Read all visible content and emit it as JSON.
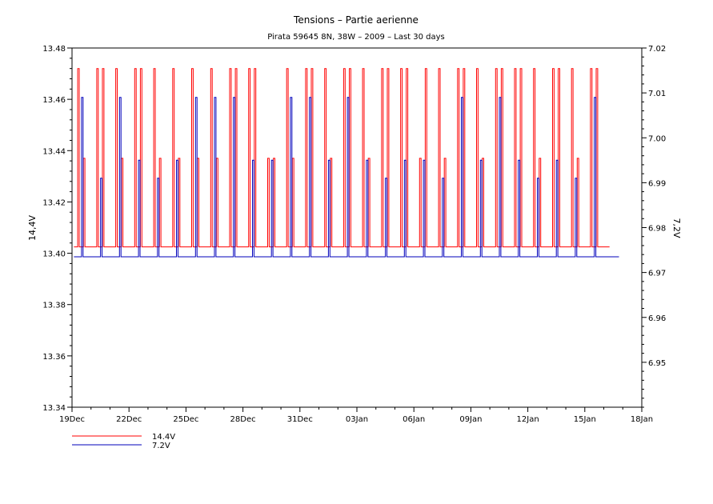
{
  "chart_data": {
    "type": "line",
    "title": "Tensions – Partie aerienne",
    "subtitle": "Pirata 59645 8N, 38W – 2009 – Last 30 days",
    "ylabel_left": "14,4V",
    "ylabel_right": "7,2V",
    "x_ticks": [
      "19Dec",
      "22Dec",
      "25Dec",
      "28Dec",
      "31Dec",
      "03Jan",
      "06Jan",
      "09Jan",
      "12Jan",
      "15Jan",
      "18Jan"
    ],
    "x_range_days": [
      0,
      30
    ],
    "ylim_left": [
      13.34,
      13.48
    ],
    "yticks_left": [
      "13.34",
      "13.36",
      "13.38",
      "13.40",
      "13.42",
      "13.44",
      "13.46",
      "13.48"
    ],
    "ylim_right": [
      6.94,
      7.02
    ],
    "yticks_right": [
      "6.95",
      "6.96",
      "6.97",
      "6.98",
      "6.99",
      "7.00",
      "7.01",
      "7.02"
    ],
    "grid": false,
    "legend_position": "bottom-left",
    "series": [
      {
        "name": "14.4V",
        "color": "#ff0000",
        "axis": "left",
        "baseline": 13.4025,
        "levels": [
          13.428,
          13.437,
          13.472
        ],
        "data_end_day": 28.3,
        "pulses": [
          {
            "day": 0.3,
            "peak": 13.472
          },
          {
            "day": 0.6,
            "peak": 13.437
          },
          {
            "day": 1.3,
            "peak": 13.472
          },
          {
            "day": 1.6,
            "peak": 13.472
          },
          {
            "day": 2.3,
            "peak": 13.472
          },
          {
            "day": 2.6,
            "peak": 13.437
          },
          {
            "day": 3.3,
            "peak": 13.472
          },
          {
            "day": 3.6,
            "peak": 13.472
          },
          {
            "day": 4.3,
            "peak": 13.472
          },
          {
            "day": 4.6,
            "peak": 13.437
          },
          {
            "day": 5.3,
            "peak": 13.472
          },
          {
            "day": 5.6,
            "peak": 13.437
          },
          {
            "day": 6.3,
            "peak": 13.472
          },
          {
            "day": 6.6,
            "peak": 13.437
          },
          {
            "day": 7.3,
            "peak": 13.472
          },
          {
            "day": 7.6,
            "peak": 13.437
          },
          {
            "day": 8.3,
            "peak": 13.472
          },
          {
            "day": 8.6,
            "peak": 13.472
          },
          {
            "day": 9.3,
            "peak": 13.472
          },
          {
            "day": 9.6,
            "peak": 13.472
          },
          {
            "day": 10.3,
            "peak": 13.437
          },
          {
            "day": 10.6,
            "peak": 13.437
          },
          {
            "day": 11.3,
            "peak": 13.472
          },
          {
            "day": 11.6,
            "peak": 13.437
          },
          {
            "day": 12.3,
            "peak": 13.472
          },
          {
            "day": 12.6,
            "peak": 13.472
          },
          {
            "day": 13.3,
            "peak": 13.472
          },
          {
            "day": 13.6,
            "peak": 13.437
          },
          {
            "day": 14.3,
            "peak": 13.472
          },
          {
            "day": 14.6,
            "peak": 13.472
          },
          {
            "day": 15.3,
            "peak": 13.472
          },
          {
            "day": 15.6,
            "peak": 13.437
          },
          {
            "day": 16.3,
            "peak": 13.472
          },
          {
            "day": 16.6,
            "peak": 13.472
          },
          {
            "day": 17.3,
            "peak": 13.472
          },
          {
            "day": 17.6,
            "peak": 13.472
          },
          {
            "day": 18.3,
            "peak": 13.437
          },
          {
            "day": 18.6,
            "peak": 13.472
          },
          {
            "day": 19.3,
            "peak": 13.472
          },
          {
            "day": 19.6,
            "peak": 13.437
          },
          {
            "day": 20.3,
            "peak": 13.472
          },
          {
            "day": 20.6,
            "peak": 13.472
          },
          {
            "day": 21.3,
            "peak": 13.472
          },
          {
            "day": 21.6,
            "peak": 13.437
          },
          {
            "day": 22.3,
            "peak": 13.472
          },
          {
            "day": 22.6,
            "peak": 13.472
          },
          {
            "day": 23.3,
            "peak": 13.472
          },
          {
            "day": 23.6,
            "peak": 13.472
          },
          {
            "day": 24.3,
            "peak": 13.472
          },
          {
            "day": 24.6,
            "peak": 13.437
          },
          {
            "day": 25.3,
            "peak": 13.472
          },
          {
            "day": 25.6,
            "peak": 13.472
          },
          {
            "day": 26.3,
            "peak": 13.472
          },
          {
            "day": 26.6,
            "peak": 13.437
          },
          {
            "day": 27.3,
            "peak": 13.472
          },
          {
            "day": 27.6,
            "peak": 13.472
          }
        ]
      },
      {
        "name": "7.2V",
        "color": "#0000bb",
        "axis": "right",
        "baseline": 6.9735,
        "levels": [
          6.975,
          6.9825,
          6.991,
          6.995,
          7.009
        ],
        "data_end_day": 28.8,
        "pulses": [
          {
            "day": 0.5,
            "peak": 7.009
          },
          {
            "day": 1.5,
            "peak": 6.991
          },
          {
            "day": 2.5,
            "peak": 7.009
          },
          {
            "day": 3.5,
            "peak": 6.995
          },
          {
            "day": 4.5,
            "peak": 6.991
          },
          {
            "day": 5.5,
            "peak": 6.995
          },
          {
            "day": 6.5,
            "peak": 7.009
          },
          {
            "day": 7.5,
            "peak": 7.009
          },
          {
            "day": 8.5,
            "peak": 7.009
          },
          {
            "day": 9.5,
            "peak": 6.995
          },
          {
            "day": 10.5,
            "peak": 6.995
          },
          {
            "day": 11.5,
            "peak": 7.009
          },
          {
            "day": 12.5,
            "peak": 7.009
          },
          {
            "day": 13.5,
            "peak": 6.995
          },
          {
            "day": 14.5,
            "peak": 7.009
          },
          {
            "day": 15.5,
            "peak": 6.995
          },
          {
            "day": 16.5,
            "peak": 6.991
          },
          {
            "day": 17.5,
            "peak": 6.995
          },
          {
            "day": 18.5,
            "peak": 6.995
          },
          {
            "day": 19.5,
            "peak": 6.991
          },
          {
            "day": 20.5,
            "peak": 7.009
          },
          {
            "day": 21.5,
            "peak": 6.995
          },
          {
            "day": 22.5,
            "peak": 7.009
          },
          {
            "day": 23.5,
            "peak": 6.995
          },
          {
            "day": 24.5,
            "peak": 6.991
          },
          {
            "day": 25.5,
            "peak": 6.995
          },
          {
            "day": 26.5,
            "peak": 6.991
          },
          {
            "day": 27.5,
            "peak": 7.009
          }
        ]
      }
    ],
    "legend": [
      {
        "label": "14.4V",
        "color": "#ff0000"
      },
      {
        "label": "7.2V",
        "color": "#0000bb"
      }
    ]
  }
}
